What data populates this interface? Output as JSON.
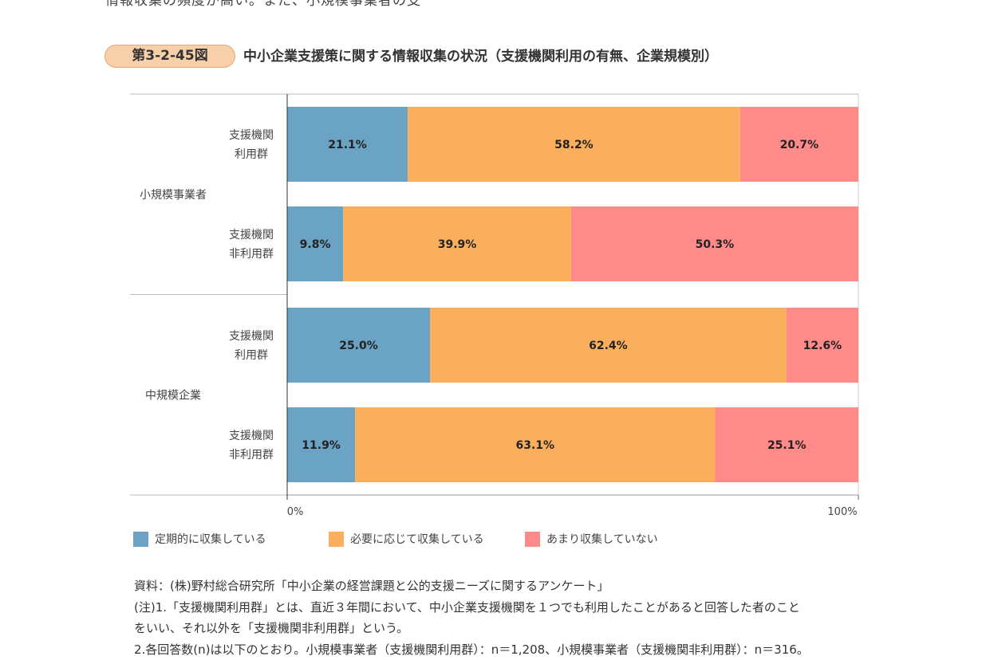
{
  "top_text": "情報収集の頻度が高い。また、小規模事業者の支",
  "figure": {
    "number": "第3-2-45図",
    "title": "中小企業支援策に関する情報収集の状況（支援機関利用の有無、企業規模別）"
  },
  "chart_data": {
    "type": "bar",
    "orientation": "horizontal-stacked-100",
    "groups": [
      {
        "label": "小規模事業者",
        "rows": [
          {
            "label": [
              "支援機関",
              "利用群"
            ],
            "values": [
              21.1,
              58.2,
              20.7
            ],
            "labels": [
              "21.1%",
              "58.2%",
              "20.7%"
            ]
          },
          {
            "label": [
              "支援機関",
              "非利用群"
            ],
            "values": [
              9.8,
              39.9,
              50.3
            ],
            "labels": [
              "9.8%",
              "39.9%",
              "50.3%"
            ]
          }
        ]
      },
      {
        "label": "中規模企業",
        "rows": [
          {
            "label": [
              "支援機関",
              "利用群"
            ],
            "values": [
              25.0,
              62.4,
              12.6
            ],
            "labels": [
              "25.0%",
              "62.4%",
              "12.6%"
            ]
          },
          {
            "label": [
              "支援機関",
              "非利用群"
            ],
            "values": [
              11.9,
              63.1,
              25.1
            ],
            "labels": [
              "11.9%",
              "63.1%",
              "25.1%"
            ]
          }
        ]
      }
    ],
    "series": [
      {
        "name": "定期的に収集している",
        "color": "#6aa3c4"
      },
      {
        "name": "必要に応じて収集している",
        "color": "#fbaf5d"
      },
      {
        "name": "あまり収集していない",
        "color": "#ff8a8a"
      }
    ],
    "xlim": [
      0,
      100
    ],
    "xticks": [
      "0%",
      "100%"
    ],
    "legend_position": "bottom"
  },
  "notes": {
    "source": "資料：(株)野村総合研究所「中小企業の経営課題と公的支援ニーズに関するアンケート」",
    "note1a": "(注)1.「支援機関利用群」とは、直近３年間において、中小企業支援機関を１つでも利用したことがあると回答した者のこと",
    "note1b": "をいい、それ以外を「支援機関非利用群」という。",
    "note2": "2.各回答数(n)は以下のとおり。小規模事業者（支援機関利用群）：n＝1,208、小規模事業者（支援機関非利用群）：n＝316。"
  }
}
